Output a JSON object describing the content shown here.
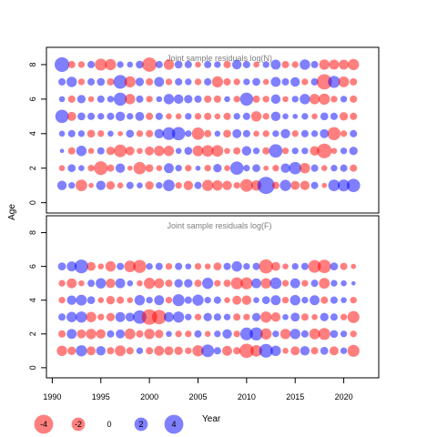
{
  "chart_data": {
    "type": "scatter",
    "subtype": "bubble",
    "ylabel": "Age",
    "xlabel": "Year",
    "xlim": [
      1989.4,
      2023.6
    ],
    "x_ticks": [
      1990,
      1995,
      2000,
      2005,
      2010,
      2015,
      2020
    ],
    "years": [
      1991,
      1992,
      1993,
      1994,
      1995,
      1996,
      1997,
      1998,
      1999,
      2000,
      2001,
      2002,
      2003,
      2004,
      2005,
      2006,
      2007,
      2008,
      2009,
      2010,
      2011,
      2012,
      2013,
      2014,
      2015,
      2016,
      2017,
      2018,
      2019,
      2020,
      2021
    ],
    "size_legend": {
      "values": [
        -4,
        -2,
        0,
        2,
        4
      ],
      "labels": [
        "-4",
        "-2",
        "0",
        "2",
        "4"
      ]
    },
    "colors": {
      "negative": "#ff0000",
      "positive": "#0000ff",
      "opacity": 0.5
    },
    "panels": [
      {
        "title": "Joint sample residuals log(N)",
        "ylim": [
          -0.6,
          9.0
        ],
        "y_ticks": [
          0,
          2,
          4,
          6,
          8
        ],
        "ages": [
          1,
          2,
          3,
          4,
          5,
          6,
          7,
          8
        ],
        "residuals": [
          [
            1,
            0.5,
            -1.5,
            -0.3,
            1,
            -0.8,
            -0.4,
            0.6,
            0.4,
            -0.8,
            0.5,
            1.5,
            -0.5,
            -1,
            0.6,
            -1.4,
            -1.2,
            -1,
            -0.5,
            -1.8,
            -1.2,
            3.3,
            -0.6,
            1.4,
            -0.9,
            -1,
            0.6,
            -0.3,
            1.5,
            1.6,
            2
          ],
          [
            -0.4,
            0.7,
            0.4,
            -0.5,
            -2.1,
            -0.6,
            1,
            -0.3,
            -1.7,
            -0.7,
            -0.4,
            1.1,
            0.5,
            -0.5,
            0.3,
            -0.5,
            0.8,
            -0.4,
            2,
            0.5,
            0.7,
            -0.3,
            -0.5,
            1,
            1.7,
            -1.2,
            0.6,
            -0.4,
            0.5,
            0.6,
            -0.6
          ],
          [
            0.2,
            -0.6,
            1.2,
            -0.4,
            0.6,
            -0.8,
            -1.8,
            -0.9,
            -0.4,
            -0.9,
            -1.2,
            -1.2,
            0.4,
            0.7,
            -1.3,
            -1.5,
            -1.5,
            -0.4,
            -0.6,
            1,
            0.5,
            -0.6,
            2,
            -0.5,
            0.5,
            0.5,
            -1,
            -2.4,
            -0.4,
            0.5,
            0.8
          ],
          [
            0.4,
            0.6,
            0.5,
            -0.7,
            -0.5,
            0.4,
            -0.3,
            0.7,
            -0.5,
            -0.6,
            1,
            1.8,
            2,
            0.5,
            -1.7,
            -0.6,
            0.4,
            -0.7,
            0.9,
            0.6,
            -0.4,
            -0.5,
            0.5,
            1,
            -0.5,
            0.6,
            0.5,
            0.9,
            -1.9,
            -0.5,
            0.6
          ],
          [
            2,
            -0.9,
            0.7,
            0.6,
            0.5,
            0.6,
            1,
            0.5,
            0.9,
            -0.6,
            0.6,
            -0.4,
            -0.4,
            0.5,
            -0.5,
            -0.6,
            -0.4,
            -0.6,
            0.5,
            0.6,
            -1.2,
            -0.5,
            1,
            0.4,
            0.3,
            0.5,
            -0.4,
            0.7,
            0.6,
            -0.8,
            -0.6
          ],
          [
            0.4,
            -0.6,
            0.8,
            -0.4,
            0.6,
            0.5,
            1.9,
            -1.2,
            0.6,
            -0.5,
            0.4,
            1.2,
            1,
            0.8,
            0.6,
            -0.6,
            -0.6,
            0.4,
            -0.5,
            1.9,
            -0.6,
            -0.5,
            1,
            -0.4,
            0.5,
            1.2,
            -1.2,
            -1.4,
            -0.5,
            0.5,
            -0.6
          ],
          [
            0.6,
            1.2,
            -0.5,
            0.6,
            0.7,
            -0.6,
            2.1,
            -1.4,
            0.8,
            -0.6,
            1.1,
            -0.5,
            0.6,
            0.5,
            -0.5,
            0.6,
            -1.4,
            -0.6,
            -0.5,
            0.5,
            0.7,
            -0.4,
            1.1,
            0.6,
            1,
            -0.5,
            0.6,
            -2.6,
            1.6,
            -1.3,
            -0.6
          ],
          [
            2.4,
            -0.6,
            -0.5,
            0.6,
            -1.6,
            -1.4,
            0.5,
            0.4,
            0.7,
            -2.3,
            0.6,
            -1.2,
            0.7,
            0.6,
            -0.4,
            0.6,
            0.5,
            -0.6,
            1,
            0.6,
            -0.4,
            0.5,
            1.1,
            -0.6,
            -0.5,
            1.2,
            0.6,
            -1.2,
            -1.1,
            -1.1,
            -1.4
          ]
        ]
      },
      {
        "title": "Joint sample residuals log(F)",
        "ylim": [
          -0.6,
          9.0
        ],
        "y_ticks": [
          0,
          2,
          4,
          6,
          8
        ],
        "ages": [
          1,
          2,
          3,
          4,
          5,
          6
        ],
        "residuals": [
          [
            -1.2,
            -0.8,
            1.4,
            -0.9,
            1,
            -0.6,
            -1.3,
            -0.6,
            0.5,
            -0.6,
            -1.1,
            -0.9,
            -0.8,
            -0.5,
            -1.4,
            1.8,
            0.6,
            -1.1,
            -0.6,
            -2.3,
            -1.5,
            2.1,
            1.2,
            -0.4,
            -0.9,
            1,
            -0.6,
            0.7,
            -0.9,
            0.5,
            -1.6
          ],
          [
            -0.6,
            1.1,
            -0.9,
            -1.2,
            -1,
            0.6,
            0.9,
            -1.3,
            -0.6,
            -1.2,
            -0.8,
            0.4,
            -0.5,
            -0.5,
            0.6,
            -0.4,
            0.5,
            1,
            -0.5,
            1.8,
            1.9,
            -1.4,
            0.5,
            -1.2,
            1.2,
            0.6,
            -1.3,
            -1.6,
            0.7,
            0.5,
            -0.5
          ],
          [
            0.6,
            1.2,
            1.4,
            -1.2,
            -0.5,
            -0.8,
            1.1,
            0.9,
            2,
            -2.7,
            -2.3,
            1.1,
            1.4,
            0.5,
            -0.5,
            0.8,
            0.6,
            0.5,
            -0.6,
            -0.5,
            0.8,
            -1.4,
            -1,
            0.4,
            0.9,
            -0.6,
            -0.4,
            0.8,
            0.6,
            -0.5,
            -1.6
          ],
          [
            -0.5,
            1,
            1.3,
            0.7,
            -0.4,
            -0.8,
            -0.6,
            -0.4,
            1.2,
            0.5,
            1.1,
            -0.5,
            1.6,
            0.6,
            1.4,
            0.5,
            0.6,
            -0.4,
            -0.9,
            -1,
            0.4,
            0.7,
            1.1,
            -0.5,
            1.2,
            0.5,
            1.1,
            -0.6,
            0.6,
            0.4,
            -0.5
          ],
          [
            -0.5,
            -1.1,
            -0.4,
            0.6,
            1.2,
            -1,
            1.1,
            0.4,
            -0.4,
            -1.4,
            -1.1,
            -0.6,
            0.8,
            0.8,
            -0.6,
            1.4,
            -0.5,
            -0.6,
            -1.6,
            -1.6,
            1.1,
            -1.2,
            1.5,
            -0.5,
            1.1,
            -0.5,
            0.6,
            -1.3,
            0.5,
            0.4,
            0.2
          ],
          [
            0.7,
            1.1,
            2.1,
            -0.9,
            -0.4,
            -1.2,
            0.6,
            -1.5,
            -1.9,
            0.5,
            0.6,
            -0.5,
            0.6,
            0.4,
            -0.5,
            -0.4,
            -0.7,
            0.6,
            1.2,
            0.5,
            0.6,
            -2.2,
            -0.9,
            -0.4,
            0.5,
            0.6,
            -1.8,
            -2,
            0.7,
            -0.6,
            -0.3
          ]
        ]
      }
    ]
  }
}
